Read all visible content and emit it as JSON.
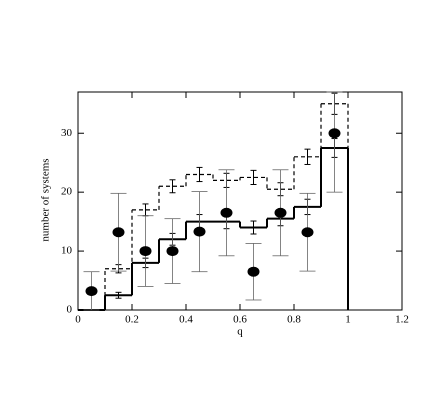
{
  "chart_data": {
    "type": "histogram",
    "xlabel": "q",
    "ylabel": "number of systems",
    "bins": [
      0,
      0.1,
      0.2,
      0.3,
      0.4,
      0.5,
      0.6,
      0.7,
      0.8,
      0.9,
      1.0
    ],
    "series": [
      {
        "style": "solid",
        "color": "#000000",
        "values": [
          0,
          2.5,
          8,
          12,
          15,
          15,
          14,
          15.5,
          17.5,
          27.5
        ],
        "errors": [
          0,
          0.5,
          0.8,
          1,
          1.2,
          1.2,
          1.1,
          1.2,
          1.3,
          1.6
        ]
      },
      {
        "style": "dashed",
        "color": "#000000",
        "values": [
          0,
          7,
          17,
          21,
          23,
          22,
          22.5,
          20.5,
          26,
          35
        ],
        "errors": [
          0,
          0.7,
          1,
          1.1,
          1.2,
          1.2,
          1.2,
          1.1,
          1.3,
          1.8
        ]
      }
    ],
    "points": {
      "x": [
        0.05,
        0.15,
        0.25,
        0.35,
        0.45,
        0.55,
        0.65,
        0.75,
        0.85,
        0.95
      ],
      "values": [
        3.2,
        13.2,
        10,
        10,
        13.3,
        16.5,
        6.5,
        16.5,
        13.2,
        30
      ],
      "errors": [
        3.3,
        6.6,
        6,
        5.5,
        6.8,
        7.3,
        4.8,
        7.3,
        6.6,
        10
      ],
      "color": "#000000"
    },
    "xlim": [
      0,
      1.2
    ],
    "ylim": [
      0,
      37
    ],
    "xticks": [
      0,
      0.2,
      0.4,
      0.6,
      0.8,
      1,
      1.2
    ],
    "yticks": [
      0,
      10,
      20,
      30
    ]
  }
}
